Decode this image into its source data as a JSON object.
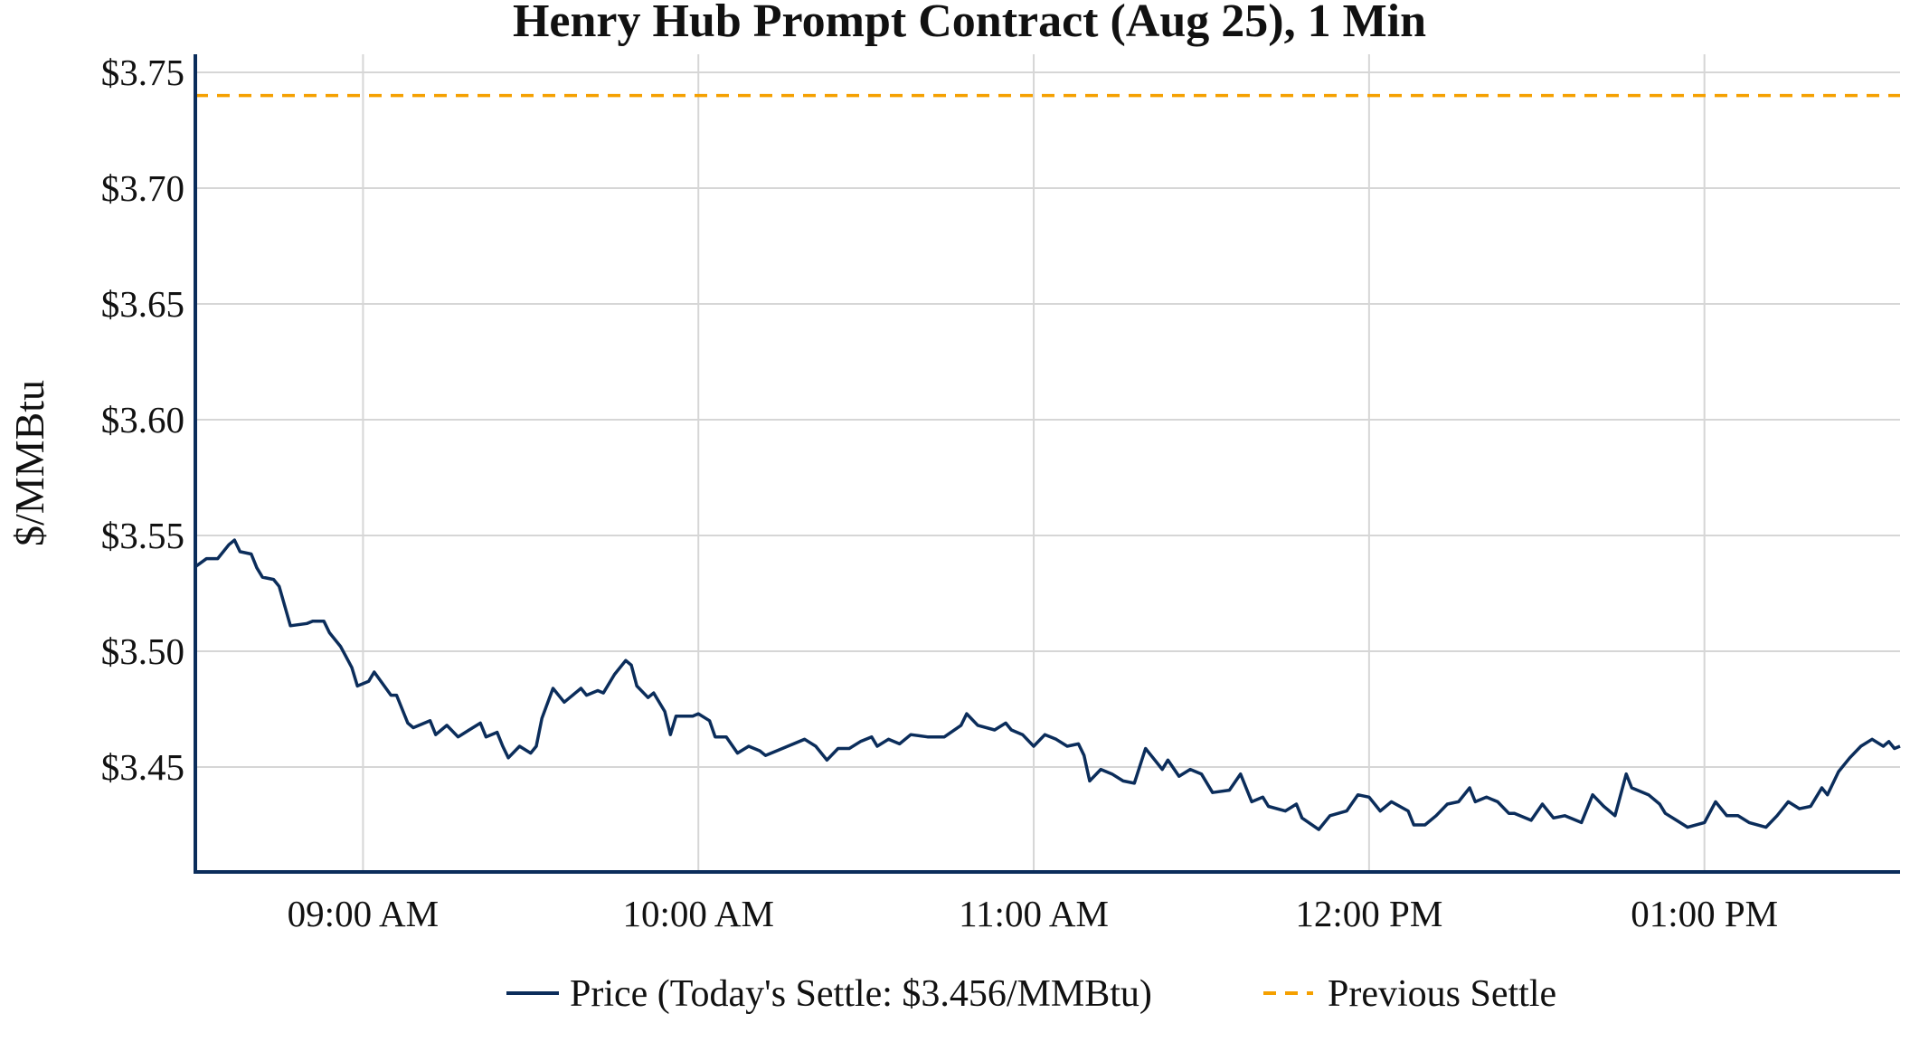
{
  "chart_data": {
    "type": "line",
    "title": "Henry Hub Prompt Contract (Aug 25), 1 Min",
    "xlabel": "",
    "ylabel": "$/MMBtu",
    "x_unit": "minutes since 08:30 AM",
    "xlim": [
      0,
      305
    ],
    "ylim": [
      3.4046,
      3.757
    ],
    "grid": true,
    "legend_placement": "bottom-center",
    "x_ticks": [
      {
        "value": 30,
        "label": "09:00 AM"
      },
      {
        "value": 90,
        "label": "10:00 AM"
      },
      {
        "value": 150,
        "label": "11:00 AM"
      },
      {
        "value": 210,
        "label": "12:00 PM"
      },
      {
        "value": 270,
        "label": "01:00 PM"
      }
    ],
    "y_ticks": [
      {
        "value": 3.45,
        "label": "$3.45"
      },
      {
        "value": 3.5,
        "label": "$3.50"
      },
      {
        "value": 3.55,
        "label": "$3.55"
      },
      {
        "value": 3.6,
        "label": "$3.60"
      },
      {
        "value": 3.65,
        "label": "$3.65"
      },
      {
        "value": 3.7,
        "label": "$3.70"
      },
      {
        "value": 3.75,
        "label": "$3.75"
      }
    ],
    "series": [
      {
        "name": "Price (Today's Settle: $3.456/MMBtu)",
        "color": "#0b2d5b",
        "style": "solid",
        "x": [
          0,
          2,
          4,
          6,
          7,
          8,
          10,
          11,
          12,
          14,
          15,
          17,
          20,
          21,
          23,
          24,
          26,
          28,
          29,
          31,
          32,
          35,
          36,
          38,
          39,
          42,
          43,
          45,
          47,
          49,
          51,
          52,
          54,
          55,
          56,
          58,
          60,
          61,
          62,
          64,
          66,
          67,
          69,
          70,
          72,
          73,
          75,
          77,
          78,
          79,
          81,
          82,
          84,
          85,
          86,
          89,
          90,
          92,
          93,
          95,
          97,
          99,
          101,
          102,
          104,
          106,
          109,
          111,
          113,
          115,
          117,
          119,
          121,
          122,
          124,
          126,
          128,
          131,
          134,
          137,
          138,
          140,
          143,
          145,
          146,
          148,
          150,
          152,
          154,
          156,
          158,
          159,
          160,
          162,
          164,
          166,
          168,
          170,
          173,
          174,
          176,
          178,
          180,
          182,
          185,
          187,
          189,
          191,
          192,
          195,
          197,
          198,
          201,
          203,
          206,
          208,
          210,
          212,
          214,
          217,
          218,
          220,
          222,
          224,
          226,
          228,
          229,
          231,
          233,
          235,
          236,
          239,
          241,
          243,
          245,
          248,
          250,
          252,
          254,
          256,
          257,
          260,
          262,
          263,
          265,
          267,
          270,
          272,
          274,
          276,
          278,
          281,
          283,
          285,
          287,
          289,
          291,
          292,
          294,
          296,
          298,
          300,
          302,
          303,
          304,
          305
        ],
        "y": [
          3.5365,
          3.54,
          3.54,
          3.546,
          3.548,
          3.543,
          3.542,
          3.536,
          3.532,
          3.531,
          3.528,
          3.511,
          3.512,
          3.513,
          3.513,
          3.508,
          3.502,
          3.493,
          3.485,
          3.487,
          3.491,
          3.481,
          3.481,
          3.469,
          3.467,
          3.47,
          3.464,
          3.468,
          3.463,
          3.466,
          3.469,
          3.463,
          3.465,
          3.459,
          3.454,
          3.459,
          3.456,
          3.459,
          3.471,
          3.484,
          3.478,
          3.48,
          3.484,
          3.481,
          3.483,
          3.482,
          3.49,
          3.496,
          3.494,
          3.485,
          3.48,
          3.482,
          3.474,
          3.464,
          3.472,
          3.472,
          3.473,
          3.47,
          3.463,
          3.463,
          3.456,
          3.459,
          3.457,
          3.455,
          3.457,
          3.459,
          3.462,
          3.459,
          3.453,
          3.458,
          3.458,
          3.461,
          3.463,
          3.459,
          3.462,
          3.46,
          3.464,
          3.463,
          3.463,
          3.468,
          3.473,
          3.468,
          3.466,
          3.469,
          3.466,
          3.464,
          3.459,
          3.464,
          3.462,
          3.459,
          3.46,
          3.455,
          3.444,
          3.449,
          3.447,
          3.444,
          3.443,
          3.458,
          3.449,
          3.453,
          3.446,
          3.449,
          3.447,
          3.439,
          3.44,
          3.447,
          3.435,
          3.437,
          3.433,
          3.431,
          3.434,
          3.428,
          3.423,
          3.429,
          3.431,
          3.438,
          3.437,
          3.431,
          3.435,
          3.431,
          3.425,
          3.425,
          3.429,
          3.434,
          3.435,
          3.441,
          3.435,
          3.437,
          3.435,
          3.43,
          3.43,
          3.427,
          3.434,
          3.428,
          3.429,
          3.426,
          3.438,
          3.433,
          3.429,
          3.447,
          3.441,
          3.438,
          3.434,
          3.43,
          3.427,
          3.424,
          3.426,
          3.435,
          3.429,
          3.429,
          3.426,
          3.424,
          3.429,
          3.435,
          3.432,
          3.433,
          3.441,
          3.438,
          3.448,
          3.454,
          3.459,
          3.462,
          3.459,
          3.461,
          3.458,
          3.459
        ]
      },
      {
        "name": "Previous Settle",
        "color": "#f5a000",
        "style": "dashed",
        "value": 3.74
      }
    ]
  }
}
